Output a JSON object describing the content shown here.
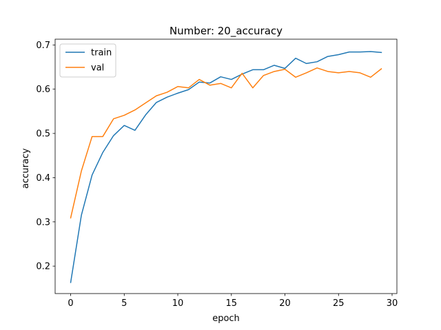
{
  "chart_data": {
    "type": "line",
    "title": "Number: 20_accuracy",
    "xlabel": "epoch",
    "ylabel": "accuracy",
    "xlim": [
      -1.45,
      30.45
    ],
    "ylim": [
      0.138,
      0.713
    ],
    "xticks": [
      0,
      5,
      10,
      15,
      20,
      25,
      30
    ],
    "yticks": [
      0.2,
      0.3,
      0.4,
      0.5,
      0.6,
      0.7
    ],
    "grid": false,
    "legend_position": "upper-left",
    "x": [
      0,
      1,
      2,
      3,
      4,
      5,
      6,
      7,
      8,
      9,
      10,
      11,
      12,
      13,
      14,
      15,
      16,
      17,
      18,
      19,
      20,
      21,
      22,
      23,
      24,
      25,
      26,
      27,
      28,
      29
    ],
    "series": [
      {
        "name": "train",
        "color": "#1f77b4",
        "values": [
          0.163,
          0.315,
          0.406,
          0.457,
          0.495,
          0.518,
          0.507,
          0.542,
          0.57,
          0.582,
          0.591,
          0.599,
          0.616,
          0.614,
          0.628,
          0.622,
          0.634,
          0.644,
          0.644,
          0.654,
          0.647,
          0.67,
          0.658,
          0.662,
          0.674,
          0.678,
          0.684,
          0.684,
          0.685,
          0.683
        ]
      },
      {
        "name": "val",
        "color": "#ff7f0e",
        "values": [
          0.309,
          0.415,
          0.493,
          0.493,
          0.533,
          0.541,
          0.553,
          0.569,
          0.585,
          0.593,
          0.606,
          0.603,
          0.622,
          0.609,
          0.613,
          0.603,
          0.636,
          0.603,
          0.631,
          0.64,
          0.645,
          0.627,
          0.637,
          0.648,
          0.64,
          0.637,
          0.64,
          0.637,
          0.627,
          0.646
        ]
      }
    ]
  }
}
